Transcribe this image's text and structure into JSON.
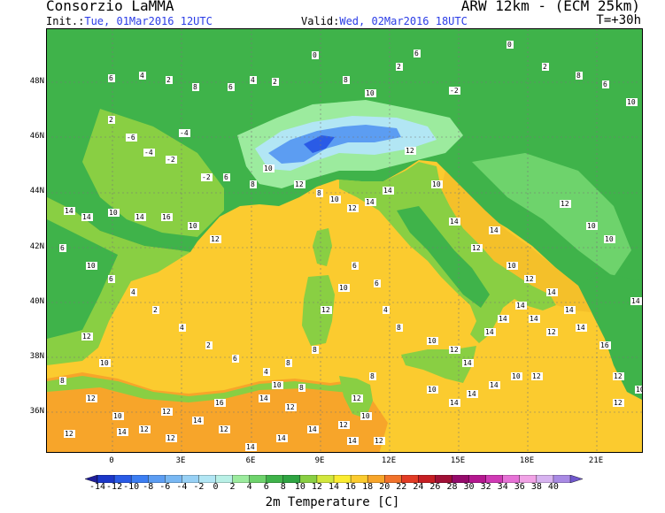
{
  "header": {
    "org": "Consorzio LaMMA",
    "model": "ARW 12km - (ECM 25km)",
    "init_label": "Init.:",
    "init_time": "Tue, 01Mar2016 12UTC",
    "valid_label": "Valid:",
    "valid_time": "Wed, 02Mar2016 18UTC",
    "lead_time": "T=+30h"
  },
  "axes": {
    "lat_labels": [
      "48N",
      "46N",
      "44N",
      "42N",
      "40N",
      "38N",
      "36N"
    ],
    "lon_labels": [
      "0",
      "3E",
      "6E",
      "9E",
      "12E",
      "15E",
      "18E",
      "21E"
    ]
  },
  "colorbar": {
    "title": "2m Temperature [C]",
    "labels": [
      "-14",
      "-12",
      "-10",
      "-8",
      "-6",
      "-4",
      "-2",
      "0",
      "2",
      "4",
      "6",
      "8",
      "10",
      "12",
      "14",
      "16",
      "18",
      "20",
      "22",
      "24",
      "26",
      "28",
      "30",
      "32",
      "34",
      "36",
      "38",
      "40"
    ],
    "colors": [
      "#1f1e9a",
      "#1b37c8",
      "#2a5be6",
      "#3c7ef2",
      "#5c9df2",
      "#79b8f3",
      "#98d1f5",
      "#b2e6f4",
      "#b9f0e6",
      "#9ceb9e",
      "#6ed36c",
      "#3fb34a",
      "#2ea442",
      "#89cf43",
      "#d2e73d",
      "#fbec31",
      "#fbcb2f",
      "#f7a52a",
      "#f1722b",
      "#e23c25",
      "#c61e23",
      "#a01036",
      "#950b6b",
      "#b4178f",
      "#d03ab5",
      "#e672d6",
      "#f1a3e6",
      "#d7b3f0",
      "#a98ae4",
      "#6f57cc"
    ]
  },
  "map_data": {
    "colors": {
      "sea": "#fbcb2f",
      "sea_warm": "#f4c02a",
      "land_warm": "#89cf43",
      "land": "#3fb34a",
      "land_cool": "#6ed36c",
      "alps_cool": "#9ceb9e",
      "snow": "#b2e6f4",
      "cold": "#5c9df2",
      "colder": "#2a5be6",
      "africa": "#f7a52a"
    },
    "value_labels": [
      "6",
      "4",
      "2",
      "8",
      "6",
      "4",
      "2",
      "0",
      "8",
      "10",
      "2",
      "6",
      "-2",
      "0",
      "2",
      "8",
      "6",
      "10",
      "2",
      "-6",
      "-4",
      "-2",
      "-4",
      "-2",
      "6",
      "8",
      "10",
      "12",
      "8",
      "10",
      "12",
      "14",
      "14",
      "12",
      "10",
      "14",
      "12",
      "14",
      "10",
      "12",
      "14",
      "14",
      "14",
      "16",
      "12",
      "10",
      "8",
      "12",
      "14",
      "14",
      "10",
      "14",
      "16",
      "10",
      "12",
      "6",
      "10",
      "6",
      "4",
      "2",
      "4",
      "2",
      "6",
      "4",
      "8",
      "8",
      "12",
      "10",
      "6",
      "6",
      "4",
      "8",
      "10",
      "12",
      "14",
      "14",
      "14",
      "14",
      "14",
      "12",
      "10",
      "14",
      "14",
      "14",
      "10",
      "12",
      "12",
      "10",
      "8",
      "12",
      "10",
      "12",
      "12",
      "14",
      "12",
      "14",
      "14",
      "14",
      "12",
      "10",
      "8",
      "12",
      "14",
      "12",
      "16",
      "12",
      "14",
      "12",
      "14",
      "12",
      "10",
      "8",
      "10",
      "12",
      "10",
      "14"
    ]
  }
}
